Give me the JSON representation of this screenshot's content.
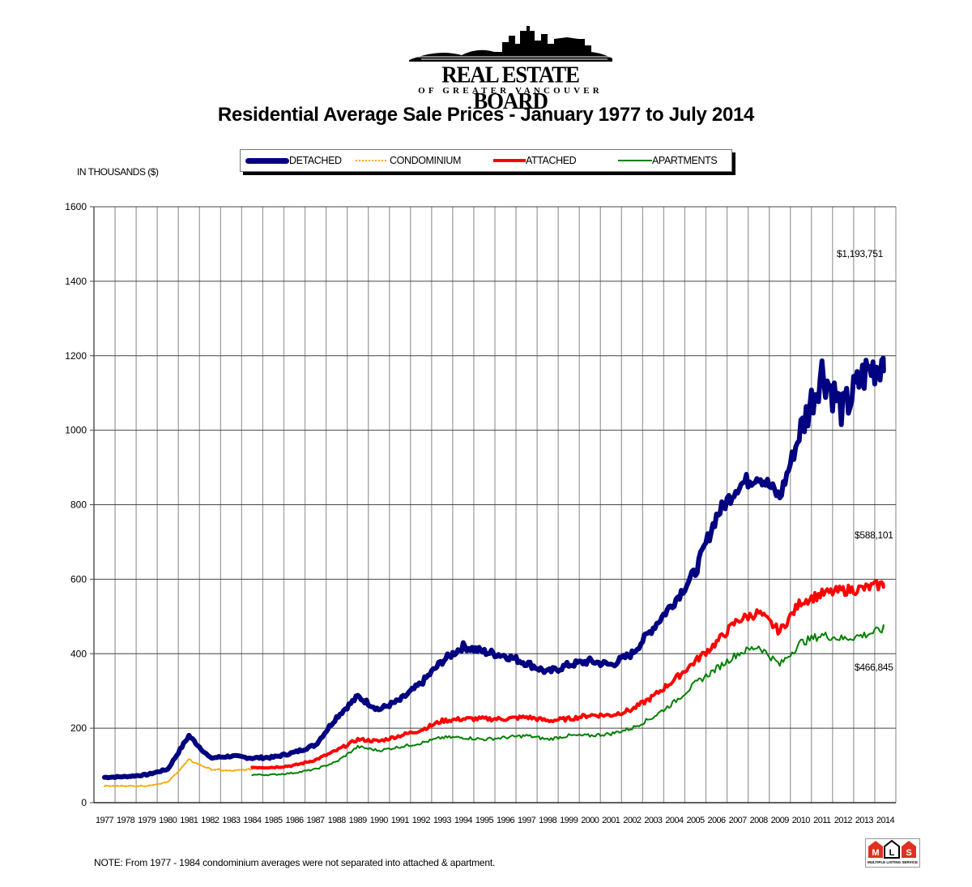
{
  "header": {
    "logo_title": "REAL ESTATE BOARD",
    "logo_subtitle": "OF GREATER VANCOUVER",
    "title": "Residential Average Sale Prices  -  January 1977 to July 2014"
  },
  "legend": {
    "items": [
      {
        "label": "DETACHED",
        "color": "#000080",
        "style": "thick-solid"
      },
      {
        "label": "CONDOMINIUM",
        "color": "#FFA500",
        "style": "dashed"
      },
      {
        "label": "ATTACHED",
        "color": "#FF0000",
        "style": "solid"
      },
      {
        "label": "APARTMENTS",
        "color": "#008000",
        "style": "thin-solid"
      }
    ]
  },
  "axis": {
    "y_unit_label": "IN THOUSANDS ($)",
    "y_ticks": [
      "0",
      "200",
      "400",
      "600",
      "800",
      "1000",
      "1200",
      "1400",
      "1600"
    ],
    "x_ticks": [
      "1977",
      "1978",
      "1979",
      "1980",
      "1981",
      "1982",
      "1983",
      "1984",
      "1985",
      "1986",
      "1987",
      "1988",
      "1989",
      "1990",
      "1991",
      "1992",
      "1993",
      "1994",
      "1995",
      "1996",
      "1997",
      "1998",
      "1999",
      "2000",
      "2001",
      "2002",
      "2003",
      "2004",
      "2005",
      "2006",
      "2007",
      "2008",
      "2009",
      "2010",
      "2011",
      "2012",
      "2013",
      "2014"
    ]
  },
  "annotations": {
    "detached_latest": "$1,193,751",
    "attached_latest": "$588,101",
    "apartments_latest": "$466,845"
  },
  "footer": {
    "note": "NOTE:  From 1977 - 1984 condominium averages were not separated into attached & apartment.",
    "mls_letters": [
      "M",
      "L",
      "S"
    ],
    "mls_caption": "MULTIPLE LISTING SERVICE"
  },
  "chart_data": {
    "type": "line",
    "title": "Residential Average Sale Prices - January 1977 to July 2014",
    "xlabel": "",
    "ylabel": "IN THOUSANDS ($)",
    "ylim": [
      0,
      1600
    ],
    "grid": true,
    "legend_position": "top",
    "x": [
      1977,
      1978,
      1979,
      1980,
      1981,
      1982,
      1983,
      1984,
      1985,
      1986,
      1987,
      1988,
      1989,
      1990,
      1991,
      1992,
      1993,
      1994,
      1995,
      1996,
      1997,
      1998,
      1999,
      2000,
      2001,
      2002,
      2003,
      2004,
      2005,
      2006,
      2007,
      2008,
      2009,
      2010,
      2011,
      2012,
      2013,
      2014
    ],
    "series": [
      {
        "name": "DETACHED",
        "color": "#000080",
        "values": [
          68,
          70,
          75,
          90,
          180,
          120,
          125,
          120,
          122,
          135,
          155,
          230,
          285,
          250,
          275,
          320,
          380,
          420,
          405,
          395,
          375,
          350,
          370,
          380,
          370,
          400,
          470,
          540,
          620,
          770,
          850,
          880,
          820,
          1000,
          1160,
          1050,
          1150,
          1194
        ]
      },
      {
        "name": "CONDOMINIUM",
        "color": "#FFA500",
        "values": [
          45,
          45,
          45,
          55,
          115,
          90,
          85,
          90,
          null,
          null,
          null,
          null,
          null,
          null,
          null,
          null,
          null,
          null,
          null,
          null,
          null,
          null,
          null,
          null,
          null,
          null,
          null,
          null,
          null,
          null,
          null,
          null,
          null,
          null,
          null,
          null,
          null,
          null
        ]
      },
      {
        "name": "ATTACHED",
        "color": "#FF0000",
        "values": [
          null,
          null,
          null,
          null,
          null,
          null,
          null,
          95,
          95,
          100,
          115,
          140,
          170,
          165,
          180,
          195,
          220,
          225,
          225,
          225,
          230,
          220,
          225,
          235,
          235,
          250,
          285,
          330,
          380,
          430,
          490,
          510,
          460,
          540,
          560,
          570,
          575,
          588
        ]
      },
      {
        "name": "APARTMENTS",
        "color": "#008000",
        "values": [
          null,
          null,
          null,
          null,
          null,
          null,
          null,
          75,
          75,
          80,
          90,
          110,
          150,
          140,
          150,
          160,
          175,
          175,
          170,
          175,
          180,
          170,
          180,
          180,
          185,
          200,
          230,
          270,
          320,
          360,
          400,
          420,
          370,
          430,
          450,
          440,
          450,
          467
        ]
      }
    ],
    "annotations": [
      {
        "text": "$1,193,751",
        "series": "DETACHED",
        "x": 2014
      },
      {
        "text": "$588,101",
        "series": "ATTACHED",
        "x": 2014
      },
      {
        "text": "$466,845",
        "series": "APARTMENTS",
        "x": 2014
      }
    ]
  }
}
